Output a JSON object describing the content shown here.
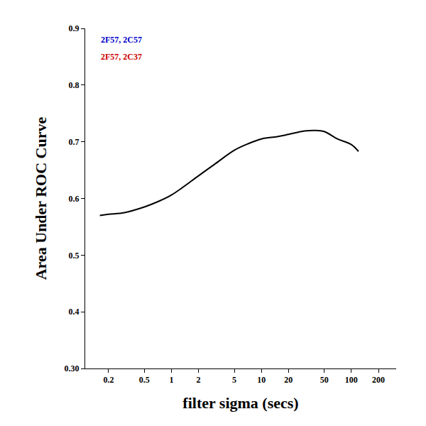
{
  "chart_data": {
    "type": "line",
    "x_label": "filter sigma (secs)",
    "y_label": "Area Under ROC Curve",
    "x": [
      0.16,
      0.2,
      0.3,
      0.5,
      0.7,
      1,
      2,
      3,
      5,
      7,
      10,
      15,
      20,
      30,
      40,
      50,
      70,
      100,
      120
    ],
    "values": [
      0.57,
      0.572,
      0.575,
      0.585,
      0.594,
      0.606,
      0.64,
      0.66,
      0.685,
      0.696,
      0.705,
      0.709,
      0.713,
      0.719,
      0.72,
      0.718,
      0.705,
      0.695,
      0.683
    ],
    "color": "#000000",
    "line_style": "solid",
    "xlim": [
      0.11,
      315
    ],
    "xticks": [
      0.2,
      0.5,
      1,
      2,
      5,
      10,
      20,
      50,
      100,
      200
    ],
    "ylim": [
      0.3,
      0.9
    ],
    "yticks": [
      {
        "value": 0.3,
        "label": "0.30"
      },
      0.4,
      0.5,
      0.6,
      0.7,
      0.8,
      0.9
    ],
    "log": "x",
    "grid": false,
    "annotations": [
      {
        "text": "2F57, 2C57",
        "color": "#0000cc"
      },
      {
        "text": "2F57, 2C37",
        "color": "#cc0000"
      }
    ]
  }
}
